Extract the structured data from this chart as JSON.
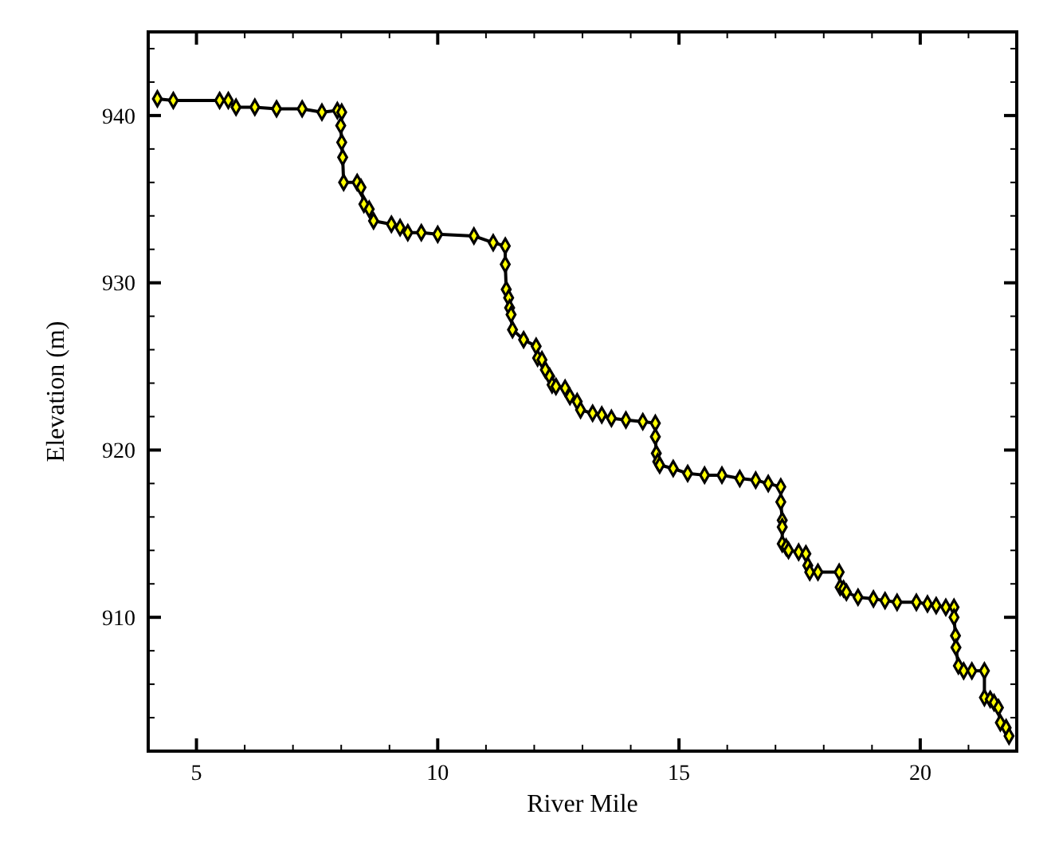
{
  "chart_data": {
    "type": "line",
    "xlabel": "River Mile",
    "ylabel": "Elevation (m)",
    "marker": "diamond",
    "line_style": "solid",
    "grid": false,
    "xlim": [
      4,
      22
    ],
    "ylim": [
      902,
      945
    ],
    "xticks": [
      {
        "value": 4,
        "label": null
      },
      5,
      {
        "value": 6,
        "label": null
      },
      {
        "value": 7,
        "label": null
      },
      {
        "value": 8,
        "label": null
      },
      {
        "value": 9,
        "label": null
      },
      10,
      {
        "value": 11,
        "label": null
      },
      {
        "value": 12,
        "label": null
      },
      {
        "value": 13,
        "label": null
      },
      {
        "value": 14,
        "label": null
      },
      15,
      {
        "value": 16,
        "label": null
      },
      {
        "value": 17,
        "label": null
      },
      {
        "value": 18,
        "label": null
      },
      {
        "value": 19,
        "label": null
      },
      20,
      {
        "value": 21,
        "label": null
      }
    ],
    "yticks": [
      {
        "value": 904,
        "label": null
      },
      {
        "value": 906,
        "label": null
      },
      {
        "value": 908,
        "label": null
      },
      910,
      {
        "value": 912,
        "label": null
      },
      {
        "value": 914,
        "label": null
      },
      {
        "value": 916,
        "label": null
      },
      {
        "value": 918,
        "label": null
      },
      920,
      {
        "value": 922,
        "label": null
      },
      {
        "value": 924,
        "label": null
      },
      {
        "value": 926,
        "label": null
      },
      {
        "value": 928,
        "label": null
      },
      930,
      {
        "value": 932,
        "label": null
      },
      {
        "value": 934,
        "label": null
      },
      {
        "value": 936,
        "label": null
      },
      {
        "value": 938,
        "label": null
      },
      940,
      {
        "value": 942,
        "label": null
      },
      {
        "value": 944,
        "label": null
      }
    ],
    "x": [
      4.19,
      4.52,
      5.48,
      5.66,
      5.82,
      6.21,
      6.66,
      7.19,
      7.6,
      7.92,
      8.01,
      7.99,
      8.01,
      8.03,
      8.05,
      8.33,
      8.41,
      8.47,
      8.58,
      8.67,
      9.04,
      9.22,
      9.38,
      9.66,
      10.0,
      10.75,
      11.15,
      11.4,
      11.4,
      11.42,
      11.47,
      11.49,
      11.52,
      11.55,
      11.78,
      12.04,
      12.07,
      12.16,
      12.23,
      12.32,
      12.37,
      12.45,
      12.64,
      12.74,
      12.89,
      12.96,
      13.21,
      13.4,
      13.6,
      13.9,
      14.25,
      14.51,
      14.51,
      14.53,
      14.56,
      14.6,
      14.88,
      15.18,
      15.53,
      15.89,
      16.26,
      16.59,
      16.85,
      17.11,
      17.11,
      17.14,
      17.14,
      17.14,
      17.22,
      17.27,
      17.48,
      17.63,
      17.67,
      17.71,
      17.88,
      18.32,
      18.34,
      18.41,
      18.47,
      18.71,
      19.03,
      19.27,
      19.52,
      19.92,
      20.15,
      20.33,
      20.53,
      20.7,
      20.7,
      20.73,
      20.74,
      20.79,
      20.9,
      21.07,
      21.33,
      21.33,
      21.45,
      21.53,
      21.62,
      21.66,
      21.78,
      21.84
    ],
    "series": [
      {
        "color": "#000000",
        "values": [
          941.0,
          940.9,
          940.9,
          940.9,
          940.5,
          940.5,
          940.4,
          940.4,
          940.2,
          940.3,
          940.2,
          939.4,
          938.4,
          937.5,
          936.0,
          936.0,
          935.7,
          934.7,
          934.4,
          933.7,
          933.5,
          933.3,
          933.0,
          933.0,
          932.9,
          932.8,
          932.4,
          932.2,
          931.1,
          929.6,
          929.1,
          928.5,
          928.1,
          927.2,
          926.6,
          926.2,
          925.5,
          925.4,
          924.8,
          924.4,
          923.9,
          923.8,
          923.7,
          923.2,
          922.9,
          922.4,
          922.2,
          922.1,
          921.9,
          921.8,
          921.7,
          921.6,
          920.8,
          919.8,
          919.3,
          919.1,
          918.9,
          918.6,
          918.5,
          918.5,
          918.3,
          918.2,
          918.0,
          917.8,
          916.9,
          915.8,
          915.4,
          914.4,
          914.2,
          914.0,
          913.9,
          913.8,
          913.1,
          912.7,
          912.7,
          912.7,
          911.8,
          911.7,
          911.5,
          911.2,
          911.1,
          911.0,
          910.9,
          910.9,
          910.8,
          910.7,
          910.6,
          910.6,
          910.0,
          908.9,
          908.2,
          907.1,
          906.8,
          906.8,
          906.8,
          905.2,
          905.1,
          904.9,
          904.6,
          903.7,
          903.4,
          902.9
        ]
      }
    ]
  }
}
